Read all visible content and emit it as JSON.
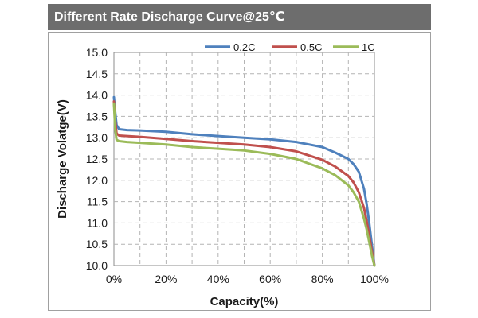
{
  "header": {
    "title": "Different Rate Discharge Curve@25℃"
  },
  "chart_data": {
    "type": "line",
    "title": "Different Rate Discharge Curve@25℃",
    "xlabel": "Capacity(%)",
    "ylabel": "Discharge Volatge(V)",
    "xlim": [
      0,
      100
    ],
    "ylim": [
      10.0,
      15.0
    ],
    "x_ticks": [
      "0%",
      "20%",
      "40%",
      "60%",
      "80%",
      "100%"
    ],
    "y_ticks": [
      "10.0",
      "10.5",
      "11.0",
      "11.5",
      "12.0",
      "12.5",
      "13.0",
      "13.5",
      "14.0",
      "14.5",
      "15.0"
    ],
    "grid": true,
    "legend_position": "top-right",
    "series": [
      {
        "name": "0.2C",
        "color": "#4f81bd",
        "x": [
          0,
          0.5,
          1,
          2,
          5,
          10,
          20,
          30,
          40,
          50,
          60,
          70,
          80,
          85,
          90,
          92,
          94,
          96,
          97,
          98,
          99,
          100
        ],
        "y": [
          13.95,
          13.6,
          13.3,
          13.2,
          13.18,
          13.17,
          13.14,
          13.08,
          13.04,
          13.0,
          12.96,
          12.9,
          12.78,
          12.65,
          12.5,
          12.38,
          12.2,
          11.8,
          11.45,
          11.0,
          10.5,
          10.0
        ]
      },
      {
        "name": "0.5C",
        "color": "#c0504d",
        "x": [
          0,
          0.5,
          1,
          2,
          5,
          10,
          20,
          30,
          40,
          50,
          60,
          70,
          80,
          85,
          90,
          92,
          94,
          96,
          97,
          98,
          99,
          100
        ],
        "y": [
          13.85,
          13.4,
          13.1,
          13.05,
          13.04,
          13.02,
          12.97,
          12.92,
          12.88,
          12.84,
          12.78,
          12.68,
          12.48,
          12.32,
          12.1,
          11.95,
          11.72,
          11.35,
          11.05,
          10.7,
          10.35,
          10.0
        ]
      },
      {
        "name": "1C",
        "color": "#9bbb59",
        "x": [
          0,
          0.5,
          1,
          2,
          5,
          10,
          20,
          30,
          40,
          50,
          60,
          70,
          80,
          85,
          90,
          92,
          94,
          96,
          97,
          98,
          99,
          100
        ],
        "y": [
          13.8,
          13.2,
          12.95,
          12.92,
          12.9,
          12.88,
          12.84,
          12.78,
          12.74,
          12.7,
          12.62,
          12.5,
          12.28,
          12.12,
          11.88,
          11.72,
          11.5,
          11.1,
          10.85,
          10.55,
          10.25,
          10.0
        ]
      }
    ]
  }
}
